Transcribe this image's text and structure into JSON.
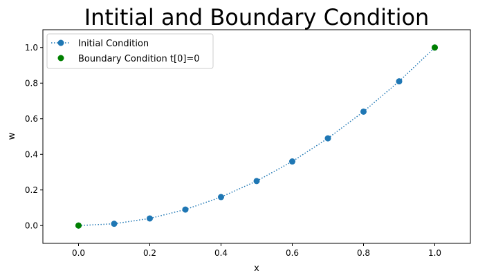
{
  "chart_data": {
    "type": "line",
    "title": "Intitial and Boundary Condition",
    "xlabel": "x",
    "ylabel": "w",
    "xlim": [
      -0.1,
      1.1
    ],
    "ylim": [
      -0.1,
      1.1
    ],
    "xticks": [
      0.0,
      0.2,
      0.4,
      0.6,
      0.8,
      1.0
    ],
    "yticks": [
      0.0,
      0.2,
      0.4,
      0.6,
      0.8,
      1.0
    ],
    "xtick_labels": [
      "0.0",
      "0.2",
      "0.4",
      "0.6",
      "0.8",
      "1.0"
    ],
    "ytick_labels": [
      "0.0",
      "0.2",
      "0.4",
      "0.6",
      "0.8",
      "1.0"
    ],
    "grid": false,
    "legend_position": "top-left",
    "series": [
      {
        "name": "Initial Condition",
        "style": "dotted-line-with-markers",
        "color": "#1f77b4",
        "x": [
          0.0,
          0.1,
          0.2,
          0.3,
          0.4,
          0.5,
          0.6,
          0.7,
          0.8,
          0.9,
          1.0
        ],
        "y": [
          0.0,
          0.01,
          0.04,
          0.09,
          0.16,
          0.25,
          0.36,
          0.49,
          0.64,
          0.81,
          1.0
        ]
      },
      {
        "name": "Boundary Condition t[0]=0",
        "style": "markers",
        "color": "#008000",
        "x": [
          0.0,
          1.0
        ],
        "y": [
          0.0,
          1.0
        ]
      }
    ]
  }
}
